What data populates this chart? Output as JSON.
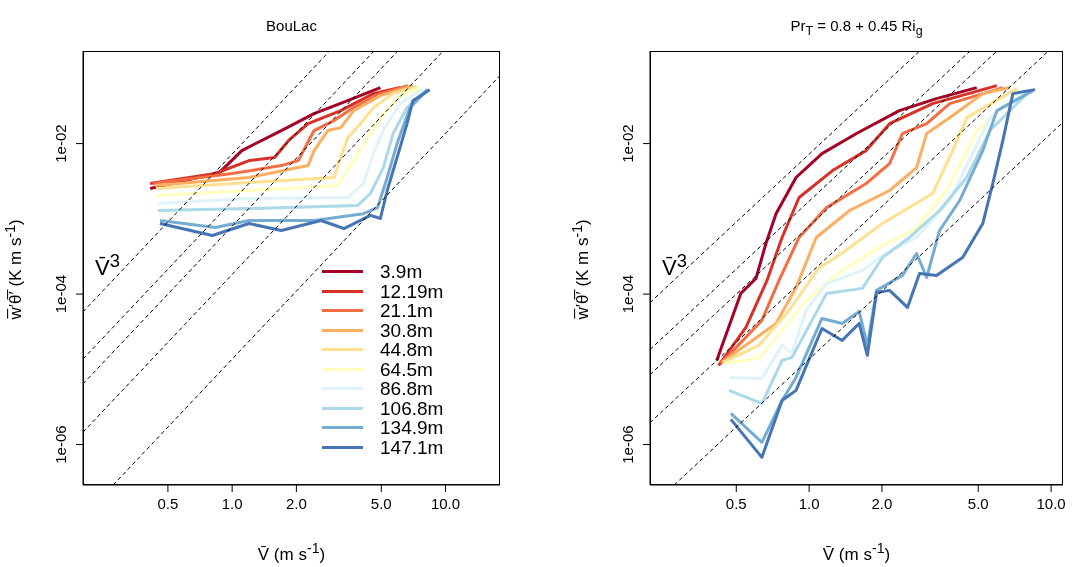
{
  "chart_data": [
    {
      "type": "line",
      "title": "BouLac",
      "xlabel": "V̄ (m s$^{-1}$)",
      "ylabel": "w̅′θ̅′ (K m s$^{-1}$)",
      "log": "xy",
      "xlim": [
        0.2,
        18
      ],
      "ylim": [
        2.9e-07,
        0.17
      ],
      "xticks": [
        0.5,
        {
          "value": 1,
          "label": "1.0"
        },
        {
          "value": 2,
          "label": "2.0"
        },
        {
          "value": 5,
          "label": "5.0"
        },
        {
          "value": 10,
          "label": "10.0"
        }
      ],
      "yticks": [
        {
          "value": 0.01,
          "label": "1e-02"
        },
        {
          "value": 0.0001,
          "label": "1e-04"
        },
        {
          "value": 1e-06,
          "label": "1e-06"
        }
      ],
      "legend": "bottom right",
      "annotations": [
        "V̄$^{3}$"
      ],
      "series": [
        {
          "name": "3.9m",
          "color": "#a50026",
          "x": [
            0.413,
            0.871,
            1.11,
            1.7,
            2.42,
            3.48,
            4.95
          ],
          "values": [
            0.00253,
            0.00412,
            0.00807,
            0.0149,
            0.025,
            0.0372,
            0.0555
          ]
        },
        {
          "name": "12.19m",
          "color": "#d73027",
          "x": [
            0.413,
            0.834,
            1.2,
            1.58,
            1.84,
            2.27,
            3.23,
            4.59,
            6.12
          ],
          "values": [
            0.00294,
            0.004,
            0.00594,
            0.00652,
            0.011,
            0.0184,
            0.0274,
            0.0461,
            0.0555
          ]
        },
        {
          "name": "21.1m",
          "color": "#f46d43",
          "x": [
            0.426,
            1.0,
            1.7,
            2.04,
            2.42,
            3.0,
            3.71,
            4.95,
            6.67
          ],
          "values": [
            0.00294,
            0.004,
            0.0051,
            0.00594,
            0.0149,
            0.0202,
            0.0301,
            0.0461,
            0.0589
          ]
        },
        {
          "name": "30.8m",
          "color": "#fdae61",
          "x": [
            0.435,
            1.2,
            2.27,
            2.42,
            2.81,
            3.23,
            3.71,
            4.95,
            7.03
          ],
          "values": [
            0.00277,
            0.00354,
            0.0051,
            0.00807,
            0.0149,
            0.0163,
            0.0274,
            0.0434,
            0.0589
          ]
        },
        {
          "name": "44.8m",
          "color": "#fee090",
          "x": [
            0.44,
            1.2,
            3.0,
            3.48,
            4.0,
            4.59,
            5.68,
            7.34
          ],
          "values": [
            0.00253,
            0.00303,
            0.00354,
            0.012,
            0.0184,
            0.0301,
            0.0461,
            0.0573
          ]
        },
        {
          "name": "64.5m",
          "color": "#ffffbf",
          "x": [
            0.44,
            1.2,
            3.13,
            3.71,
            4.31,
            4.95,
            5.93,
            7.58
          ],
          "values": [
            0.00204,
            0.00238,
            0.00277,
            0.00594,
            0.012,
            0.0221,
            0.0408,
            0.0555
          ]
        },
        {
          "name": "86.8m",
          "color": "#e0f3f8",
          "x": [
            0.45,
            1.2,
            3.48,
            4.13,
            4.59,
            5.11,
            6.12,
            7.83
          ],
          "values": [
            0.0016,
            0.00186,
            0.00192,
            0.00294,
            0.00736,
            0.0149,
            0.034,
            0.0537
          ]
        },
        {
          "name": "106.8m",
          "color": "#abd9e9",
          "x": [
            0.45,
            1.2,
            3.87,
            4.45,
            5.11,
            5.68,
            6.6,
            8.17
          ],
          "values": [
            0.00129,
            0.00137,
            0.0015,
            0.00217,
            0.0048,
            0.0136,
            0.0301,
            0.0521
          ]
        },
        {
          "name": "134.9m",
          "color": "#74add1",
          "x": [
            0.459,
            0.834,
            1.2,
            2.42,
            4.13,
            4.8,
            5.33,
            5.93,
            6.81,
            8.26
          ],
          "values": [
            0.000949,
            0.000766,
            0.000949,
            0.000949,
            0.00117,
            0.00141,
            0.00354,
            0.01,
            0.0301,
            0.0521
          ]
        },
        {
          "name": "147.1m",
          "color": "#4575b4",
          "x": [
            0.459,
            0.808,
            1.2,
            1.7,
            2.61,
            3.34,
            4.45,
            4.95,
            5.33,
            6.12,
            6.6,
            7.03,
            8.43
          ],
          "values": [
            0.000866,
            0.0006,
            0.000866,
            0.0007,
            0.000949,
            0.000743,
            0.00111,
            0.00101,
            0.00238,
            0.00885,
            0.0184,
            0.0372,
            0.0521
          ]
        },
        {
          "type": "line",
          "line_style": "dashed",
          "color": "#000000",
          "x": [
            0.2,
            2.84
          ],
          "values": [
            5.8e-05,
            0.166
          ]
        },
        {
          "type": "line",
          "line_style": "dashed",
          "color": "#000000",
          "x": [
            0.2,
            4.59
          ],
          "values": [
            1.37e-05,
            0.166
          ]
        },
        {
          "type": "line",
          "line_style": "dashed",
          "color": "#000000",
          "x": [
            0.2,
            5.93
          ],
          "values": [
            6.4e-06,
            0.166
          ]
        },
        {
          "type": "line",
          "line_style": "dashed",
          "color": "#000000",
          "x": [
            0.2,
            9.68
          ],
          "values": [
            1.46e-06,
            0.166
          ]
        },
        {
          "type": "line",
          "line_style": "dashed",
          "color": "#000000",
          "x": [
            0.277,
            18
          ],
          "values": [
            2.9e-07,
            0.08
          ]
        }
      ]
    },
    {
      "type": "line",
      "title": "Pr$_{T}$ = 0.8 + 0.45 Ri$_{g}$",
      "xlabel": "V̄ (m s$^{-1}$)",
      "ylabel": "w̅′θ̅′ (K m s$^{-1}$)",
      "log": "xy",
      "xlim": [
        0.22,
        11.2
      ],
      "ylim": [
        2.9e-07,
        0.17
      ],
      "xticks": [
        0.5,
        {
          "value": 1,
          "label": "1.0"
        },
        {
          "value": 2,
          "label": "2.0"
        },
        {
          "value": 5,
          "label": "5.0"
        },
        {
          "value": 10,
          "label": "10.0"
        }
      ],
      "yticks": [
        {
          "value": 0.01,
          "label": "1e-02"
        },
        {
          "value": 0.0001,
          "label": "1e-04"
        },
        {
          "value": 1e-06,
          "label": "1e-06"
        }
      ],
      "annotations": [
        "V̄$^{3}$"
      ],
      "series": [
        {
          "color": "#a50026",
          "x": [
            0.415,
            0.522,
            0.603,
            0.663,
            0.73,
            0.883,
            1.13,
            1.57,
            2.36,
            3.36,
            4.93
          ],
          "values": [
            1.31e-05,
            0.000102,
            0.000161,
            0.00047,
            0.00117,
            0.00354,
            0.00736,
            0.0136,
            0.0274,
            0.0396,
            0.0555
          ]
        },
        {
          "color": "#d73027",
          "x": [
            0.423,
            0.548,
            0.67,
            0.773,
            0.909,
            1.25,
            1.72,
            2.15,
            3.24,
            5.97
          ],
          "values": [
            1.13e-05,
            3.6e-05,
            0.000152,
            0.000565,
            0.00192,
            0.00438,
            0.00807,
            0.0184,
            0.034,
            0.0589
          ]
        },
        {
          "color": "#f46d43",
          "x": [
            0.432,
            0.638,
            0.751,
            0.909,
            1.18,
            1.72,
            2.15,
            2.43,
            3.06,
            3.81,
            6.32
          ],
          "values": [
            1.2e-05,
            4.46e-05,
            0.000152,
            0.000565,
            0.00141,
            0.00294,
            0.00543,
            0.0136,
            0.0184,
            0.034,
            0.0555
          ]
        },
        {
          "color": "#fdae61",
          "x": [
            0.436,
            0.73,
            0.883,
            1.07,
            1.47,
            2.15,
            2.78,
            3.06,
            3.81,
            5.22,
            6.76
          ],
          "values": [
            1.24e-05,
            4.07e-05,
            0.000122,
            0.000565,
            0.00129,
            0.00238,
            0.0048,
            0.0136,
            0.0221,
            0.0461,
            0.0555
          ]
        },
        {
          "color": "#fee090",
          "x": [
            0.44,
            0.62,
            0.826,
            1.1,
            1.29,
            2.01,
            3.24,
            3.92,
            4.48,
            7.22
          ],
          "values": [
            1.24e-05,
            2.08e-05,
            6.05e-05,
            0.000225,
            0.000306,
            0.000866,
            0.00217,
            0.00807,
            0.0221,
            0.0537
          ]
        },
        {
          "color": "#ffffbf",
          "x": [
            0.453,
            0.62,
            0.773,
            0.972,
            1.37,
            2.01,
            2.78,
            3.81,
            4.93,
            7.65
          ],
          "values": [
            1.2e-05,
            1.4e-05,
            3.29e-05,
            8.22e-05,
            0.000206,
            0.000442,
            0.000743,
            0.00277,
            0.0149,
            0.0521
          ]
        },
        {
          "color": "#e0f3f8",
          "x": [
            0.466,
            0.638,
            0.773,
            0.85,
            0.972,
            1.18,
            1.66,
            2.01,
            2.78,
            3.81,
            5.59,
            7.95
          ],
          "values": [
            7.8e-06,
            7.57e-06,
            2.08e-05,
            1.63e-05,
            6.05e-05,
            0.000138,
            0.000206,
            0.000326,
            0.000565,
            0.00175,
            0.0221,
            0.0521
          ]
        },
        {
          "color": "#abd9e9",
          "x": [
            0.466,
            0.638,
            0.773,
            0.85,
            1.18,
            1.66,
            2.01,
            2.6,
            3.46,
            4.48,
            5.59,
            8.18
          ],
          "values": [
            5.25e-06,
            3.52e-06,
            1.31e-05,
            1.44e-05,
            0.000102,
            0.000119,
            0.000306,
            0.000565,
            0.00129,
            0.00354,
            0.0149,
            0.0506
          ]
        },
        {
          "color": "#74add1",
          "x": [
            0.475,
            0.638,
            0.773,
            0.883,
            1.13,
            1.37,
            1.61,
            1.74,
            1.9,
            2.43,
            2.78,
            3.06,
            3.46,
            4.19,
            5.22,
            5.97,
            8.42
          ],
          "values": [
            2.59e-06,
            1.07e-06,
            3.86e-06,
            7.8e-06,
            4.74e-05,
            4.07e-05,
            5.87e-05,
            2.08e-05,
            0.000112,
            0.000177,
            0.000346,
            0.000166,
            0.0007,
            0.00175,
            0.00807,
            0.0274,
            0.0506
          ]
        },
        {
          "color": "#4575b4",
          "x": [
            0.475,
            0.638,
            0.773,
            0.883,
            1.13,
            1.37,
            1.61,
            1.74,
            1.9,
            2.15,
            2.55,
            2.86,
            3.36,
            4.31,
            5.22,
            5.74,
            6.32,
            6.95,
            8.58
          ],
          "values": [
            2.16e-06,
            6.76e-07,
            3.86e-06,
            5.25e-06,
            3.49e-05,
            2.42e-05,
            4.07e-05,
            1.53e-05,
            0.000105,
            0.000112,
            6.64e-05,
            0.000188,
            0.000177,
            0.000306,
            0.000866,
            0.00294,
            0.011,
            0.0461,
            0.0521
          ]
        },
        {
          "type": "line",
          "line_style": "dashed",
          "color": "#000000",
          "x": [
            0.22,
            2.84
          ],
          "values": [
            7.7e-05,
            0.166
          ]
        },
        {
          "type": "line",
          "line_style": "dashed",
          "color": "#000000",
          "x": [
            0.22,
            4.59
          ],
          "values": [
            1.83e-05,
            0.166
          ]
        },
        {
          "type": "line",
          "line_style": "dashed",
          "color": "#000000",
          "x": [
            0.22,
            5.93
          ],
          "values": [
            8.5e-06,
            0.166
          ]
        },
        {
          "type": "line",
          "line_style": "dashed",
          "color": "#000000",
          "x": [
            0.22,
            9.68
          ],
          "values": [
            1.95e-06,
            0.166
          ]
        },
        {
          "type": "line",
          "line_style": "dashed",
          "color": "#000000",
          "x": [
            0.277,
            11.2
          ],
          "values": [
            2.9e-07,
            0.0192
          ]
        }
      ]
    }
  ]
}
